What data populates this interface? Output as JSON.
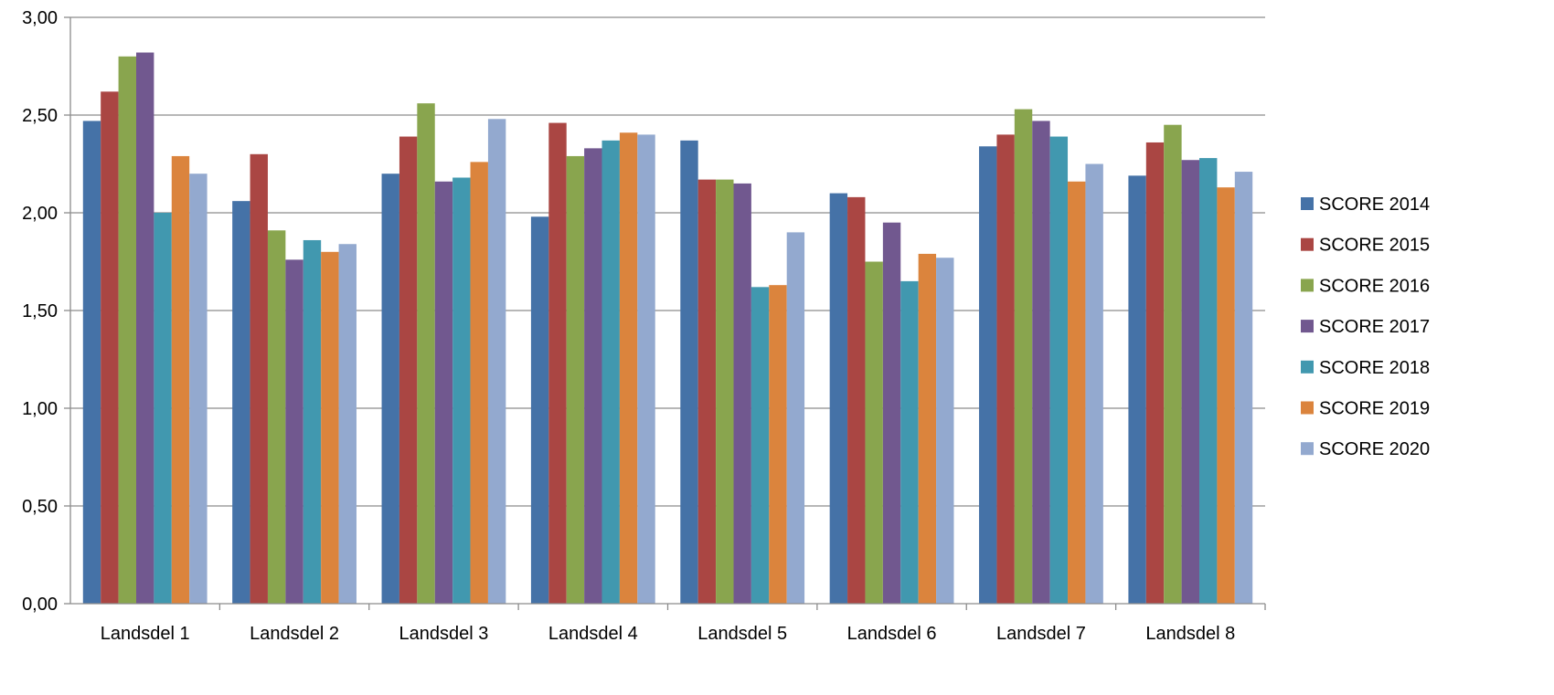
{
  "chart_data": {
    "type": "bar",
    "categories": [
      "Landsdel 1",
      "Landsdel 2",
      "Landsdel 3",
      "Landsdel 4",
      "Landsdel 5",
      "Landsdel 6",
      "Landsdel 7",
      "Landsdel 8"
    ],
    "series": [
      {
        "name": "SCORE 2014",
        "color": "#4572A7",
        "values": [
          2.47,
          2.06,
          2.2,
          1.98,
          2.37,
          2.1,
          2.34,
          2.19
        ]
      },
      {
        "name": "SCORE 2015",
        "color": "#AA4643",
        "values": [
          2.62,
          2.3,
          2.39,
          2.46,
          2.17,
          2.08,
          2.4,
          2.36
        ]
      },
      {
        "name": "SCORE 2016",
        "color": "#89A54E",
        "values": [
          2.8,
          1.91,
          2.56,
          2.29,
          2.17,
          1.75,
          2.53,
          2.45
        ]
      },
      {
        "name": "SCORE 2017",
        "color": "#71588F",
        "values": [
          2.82,
          1.76,
          2.16,
          2.33,
          2.15,
          1.95,
          2.47,
          2.27
        ]
      },
      {
        "name": "SCORE 2018",
        "color": "#4198AF",
        "values": [
          2.0,
          1.86,
          2.18,
          2.37,
          1.62,
          1.65,
          2.39,
          2.28
        ]
      },
      {
        "name": "SCORE 2019",
        "color": "#DB843D",
        "values": [
          2.29,
          1.8,
          2.26,
          2.41,
          1.63,
          1.79,
          2.16,
          2.13
        ]
      },
      {
        "name": "SCORE 2020",
        "color": "#93A9CF",
        "values": [
          2.2,
          1.84,
          2.48,
          2.4,
          1.9,
          1.77,
          2.25,
          2.21
        ]
      }
    ],
    "y_ticks": [
      "0,00",
      "0,50",
      "1,00",
      "1,50",
      "2,00",
      "2,50",
      "3,00"
    ],
    "ylim": [
      0,
      3
    ],
    "grid": true,
    "legend_position": "right"
  }
}
